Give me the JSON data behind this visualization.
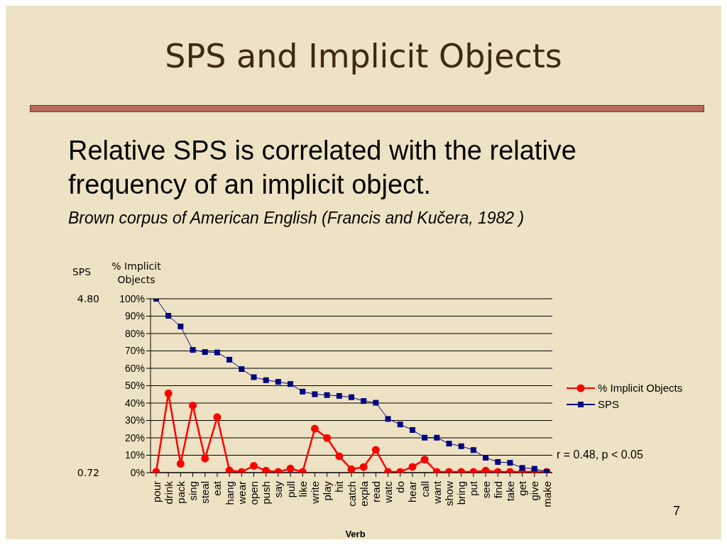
{
  "chart_data": {
    "type": "line",
    "title": "SPS and Implicit Objects",
    "subtitle": "Relative SPS is correlated with the relative frequency of an implicit object.",
    "annotations": [
      "Brown corpus of American English (Francis and Kučera, 1982 )",
      "r = 0.48, p < 0.05",
      "7"
    ],
    "xlabel": "Verb",
    "ylabel": "% Implicit Objects",
    "y2label": "SPS",
    "categories": [
      "pour",
      "drink",
      "pack",
      "sing",
      "steal",
      "eat",
      "hang",
      "wear",
      "open",
      "push",
      "say",
      "pull",
      "like",
      "write",
      "play",
      "hit",
      "catch",
      "expla",
      "read",
      "watc",
      "do",
      "hear",
      "call",
      "want",
      "show",
      "bring",
      "put",
      "see",
      "find",
      "take",
      "get",
      "give",
      "make"
    ],
    "series": [
      {
        "name": "% Implicit Objects",
        "color": "#ff0000",
        "marker": "circle",
        "values": [
          0.5,
          45.6,
          5.1,
          38.6,
          8.1,
          31.9,
          1.3,
          0.4,
          3.9,
          1.1,
          0.4,
          2.3,
          0.4,
          25.3,
          19.9,
          9.4,
          1.9,
          3.2,
          13.1,
          0.4,
          0.4,
          3.3,
          7.5,
          0.4,
          0.4,
          0.4,
          0.4,
          1.1,
          0.4,
          0.4,
          0.4,
          0.4,
          0.4
        ]
      },
      {
        "name": "SPS",
        "color": "#000080",
        "marker": "square",
        "axis": "y2",
        "values": [
          4.8,
          4.4,
          4.15,
          3.6,
          3.55,
          3.54,
          3.37,
          3.15,
          2.96,
          2.89,
          2.85,
          2.8,
          2.62,
          2.56,
          2.54,
          2.52,
          2.49,
          2.4,
          2.36,
          1.98,
          1.85,
          1.72,
          1.54,
          1.54,
          1.4,
          1.34,
          1.25,
          1.07,
          0.97,
          0.95,
          0.83,
          0.81,
          0.74
        ]
      }
    ],
    "ylim": [
      0,
      100
    ],
    "yticks": [
      {
        "value": 0,
        "label": "0%"
      },
      {
        "value": 10,
        "label": "10%"
      },
      {
        "value": 20,
        "label": "20%"
      },
      {
        "value": 30,
        "label": "30%"
      },
      {
        "value": 40,
        "label": "40%"
      },
      {
        "value": 50,
        "label": "50%"
      },
      {
        "value": 60,
        "label": "60%"
      },
      {
        "value": 70,
        "label": "70%"
      },
      {
        "value": 80,
        "label": "80%"
      },
      {
        "value": 90,
        "label": "90%"
      },
      {
        "value": 100,
        "label": "100%"
      }
    ],
    "y2lim": [
      0.72,
      4.8
    ],
    "y2ticks": [
      0.72,
      {
        "value": 4.8,
        "label": "4.80"
      }
    ],
    "grid": "y",
    "legend": "right"
  }
}
